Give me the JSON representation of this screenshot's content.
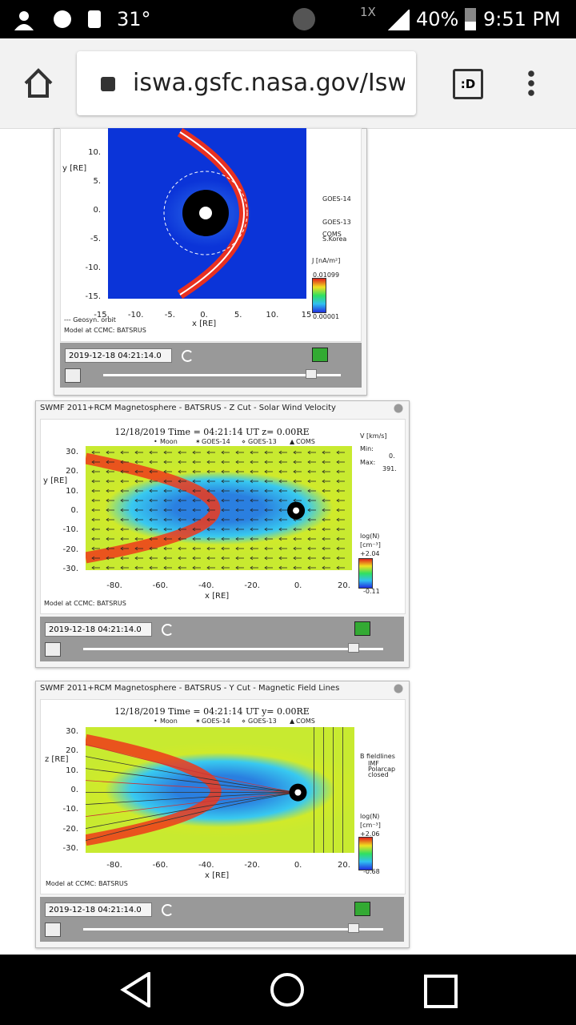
{
  "status": {
    "temperature": "31°",
    "network": "1X",
    "battery": "40%",
    "time": "9:51 PM"
  },
  "browser": {
    "url": "iswa.gsfc.nasa.gov/Isw",
    "tab_label": ":D"
  },
  "widgets": [
    {
      "title": null,
      "yticks": [
        "10.",
        "5.",
        "0.",
        "-5.",
        "-10.",
        "-15."
      ],
      "xticks": [
        "-15.",
        "-10.",
        "-5.",
        "0.",
        "5.",
        "10.",
        "15"
      ],
      "ylabel": "y [RE]",
      "xlabel": "x [RE]",
      "side": [
        "GOES-14",
        "GOES-13",
        "COMS",
        "S.Korea",
        "J [nA/m²]",
        "0.01099",
        "0.00001"
      ],
      "footer": [
        "--- Geosyn. orbit",
        "Model at CCMC: BATSRUS"
      ],
      "date": "2019-12-18 04:21:14.0"
    },
    {
      "title": "SWMF 2011+RCM Magnetosphere - BATSRUS - Z Cut - Solar Wind Velocity",
      "header": "12/18/2019 Time = 04:21:14 UT z= 0.00RE",
      "legend": [
        "Moon",
        "GOES-14",
        "GOES-13",
        "COMS"
      ],
      "yticks": [
        "30.",
        "20.",
        "10.",
        "0.",
        "-10.",
        "-20.",
        "-30."
      ],
      "xticks": [
        "-80.",
        "-60.",
        "-40.",
        "-20.",
        "0.",
        "20."
      ],
      "ylabel": "y [RE]",
      "xlabel": "x [RE]",
      "side": [
        "V [km/s]",
        "Min:",
        "0.",
        "Max:",
        "391.",
        "log(N)",
        "[cm⁻³]",
        "+2.04",
        "-0.11"
      ],
      "footer": [
        "Model at CCMC: BATSRUS"
      ],
      "date": "2019-12-18 04:21:14.0"
    },
    {
      "title": "SWMF 2011+RCM Magnetosphere - BATSRUS - Y Cut - Magnetic Field Lines",
      "header": "12/18/2019 Time = 04:21:14 UT y= 0.00RE",
      "legend": [
        "Moon",
        "GOES-14",
        "GOES-13",
        "COMS"
      ],
      "yticks": [
        "30.",
        "20.",
        "10.",
        "0.",
        "-10.",
        "-20.",
        "-30."
      ],
      "xticks": [
        "-80.",
        "-60.",
        "-40.",
        "-20.",
        "0.",
        "20."
      ],
      "ylabel": "z [RE]",
      "xlabel": "x [RE]",
      "side": [
        "B fieldlines",
        "IMF",
        "Polarcap",
        "closed",
        "log(N)",
        "[cm⁻³]",
        "+2.06",
        "-0.68"
      ],
      "footer": [
        "Model at CCMC: BATSRUS"
      ],
      "date": "2019-12-18 04:21:14.0"
    }
  ]
}
